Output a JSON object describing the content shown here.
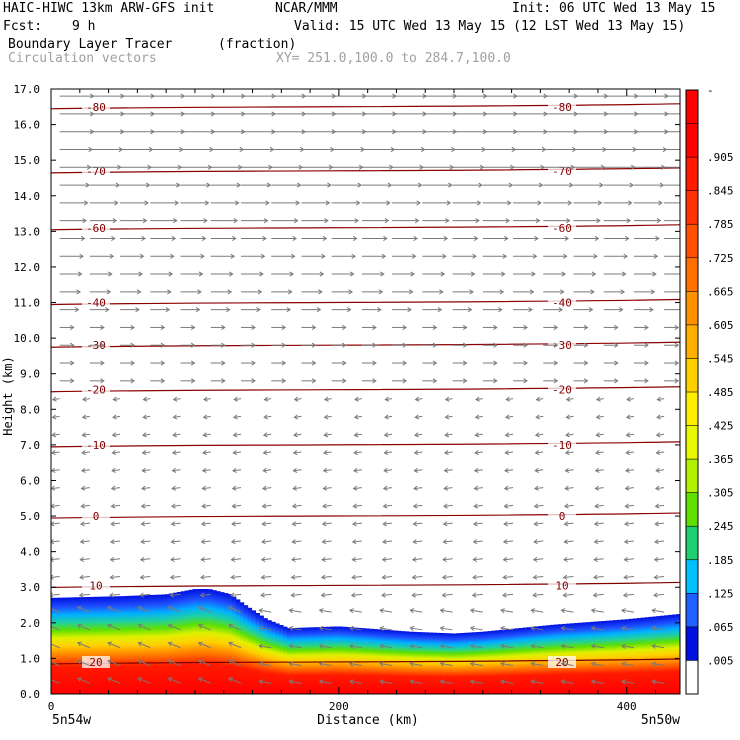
{
  "header": {
    "model": "HAIC-HIWC 13km ARW-GFS init",
    "org": "NCAR/MMM",
    "init": "Init: 06 UTC Wed 13 May 15",
    "fcst_label": "Fcst:",
    "fcst_value": "9 h",
    "valid": "Valid: 15 UTC Wed 13 May 15 (12 LST Wed 13 May 15)",
    "field_name": "Boundary Layer Tracer",
    "field_units": "(fraction)",
    "vector_label": "Circulation vectors",
    "xy_label": "XY= 251.0,100.0 to 284.7,100.0"
  },
  "chart_data": {
    "type": "heatmap",
    "title": "Boundary Layer Tracer",
    "ylabel": "Height (km)",
    "xlabel": "Distance (km)",
    "xlim": [
      0,
      437
    ],
    "ylim": [
      0,
      17
    ],
    "x_ticks": [
      "0",
      "200",
      "400"
    ],
    "x_end_labels": [
      "5n54w",
      "5n50w"
    ],
    "y_ticks": [
      "0.0",
      "1.0",
      "2.0",
      "3.0",
      "4.0",
      "5.0",
      "6.0",
      "7.0",
      "8.0",
      "9.0",
      "10.0",
      "11.0",
      "12.0",
      "13.0",
      "14.0",
      "15.0",
      "16.0",
      "17.0"
    ],
    "tracer_top_km": {
      "x": [
        0,
        50,
        80,
        100,
        110,
        125,
        135,
        150,
        165,
        200,
        250,
        280,
        300,
        350,
        400,
        437
      ],
      "y": [
        2.7,
        2.75,
        2.8,
        2.95,
        2.95,
        2.8,
        2.5,
        2.1,
        1.85,
        1.9,
        1.75,
        1.7,
        1.75,
        1.95,
        2.1,
        2.25
      ]
    },
    "temperature_contours": [
      {
        "label": "20",
        "height_km": 0.9
      },
      {
        "label": "10",
        "height_km": 3.05
      },
      {
        "label": "0",
        "height_km": 5.0
      },
      {
        "label": "-10",
        "height_km": 7.0
      },
      {
        "label": "-20",
        "height_km": 8.55
      },
      {
        "label": "-30",
        "height_km": 9.8
      },
      {
        "label": "-40",
        "height_km": 11.0
      },
      {
        "label": "-60",
        "height_km": 13.1
      },
      {
        "label": "-70",
        "height_km": 14.7
      },
      {
        "label": "-80",
        "height_km": 16.5
      }
    ],
    "colorbar": {
      "labels": [
        "-",
        ".905",
        ".845",
        ".785",
        ".725",
        ".665",
        ".605",
        ".545",
        ".485",
        ".425",
        ".365",
        ".305",
        ".245",
        ".185",
        ".125",
        ".065",
        ".005"
      ],
      "colors": [
        "#ff0000",
        "#ff0000",
        "#ff1a00",
        "#ff3300",
        "#ff5000",
        "#ff7000",
        "#ff9000",
        "#ffb000",
        "#ffd000",
        "#ffee00",
        "#e8f800",
        "#b0f000",
        "#60e000",
        "#20d070",
        "#00c0ff",
        "#2060ff",
        "#0010e0",
        "#ffffff"
      ]
    }
  }
}
